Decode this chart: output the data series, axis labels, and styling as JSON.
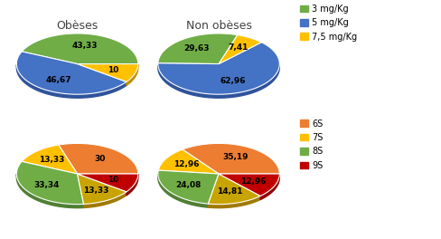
{
  "top_left": {
    "values": [
      43.33,
      46.67,
      10.0
    ],
    "labels": [
      "43,33",
      "46,67",
      "10"
    ],
    "colors": [
      "#70ad47",
      "#4472c4",
      "#ffc000"
    ],
    "dark_colors": [
      "#507f33",
      "#2f539b",
      "#bf9000"
    ],
    "startangle": 0,
    "title": "Obèses"
  },
  "top_right": {
    "values": [
      29.63,
      62.96,
      7.41
    ],
    "labels": [
      "29,63",
      "62,96",
      "7,41"
    ],
    "colors": [
      "#70ad47",
      "#4472c4",
      "#ffc000"
    ],
    "dark_colors": [
      "#507f33",
      "#2f539b",
      "#bf9000"
    ],
    "startangle": 72,
    "title": "Non obèses"
  },
  "bottom_left": {
    "values": [
      30.0,
      13.33,
      33.34,
      13.33,
      10.0
    ],
    "labels": [
      "30",
      "13,33",
      "33,34",
      "13,33",
      "10"
    ],
    "colors": [
      "#ed7d31",
      "#ffc000",
      "#70ad47",
      "#c8a400",
      "#c00000"
    ],
    "dark_colors": [
      "#b05a1e",
      "#bf9000",
      "#507f33",
      "#a07a00",
      "#900000"
    ],
    "startangle": 0,
    "title": ""
  },
  "bottom_right": {
    "values": [
      35.19,
      12.96,
      24.08,
      14.81,
      12.96
    ],
    "labels": [
      "35,19",
      "12,96",
      "24,08",
      "14,81",
      "12,96"
    ],
    "colors": [
      "#ed7d31",
      "#ffc000",
      "#70ad47",
      "#c8a400",
      "#c00000"
    ],
    "dark_colors": [
      "#b05a1e",
      "#bf9000",
      "#507f33",
      "#a07a00",
      "#900000"
    ],
    "startangle": 0,
    "title": ""
  },
  "legend_top": {
    "labels": [
      "3 mg/Kg",
      "5 mg/Kg",
      "7,5 mg/Kg"
    ],
    "colors": [
      "#70ad47",
      "#4472c4",
      "#ffc000"
    ]
  },
  "legend_bottom": {
    "labels": [
      "6S",
      "7S",
      "8S",
      "9S"
    ],
    "colors": [
      "#ed7d31",
      "#ffc000",
      "#70ad47",
      "#c00000"
    ]
  },
  "fig_width": 4.89,
  "fig_height": 2.64,
  "dpi": 100,
  "background_color": "#ffffff",
  "label_fontsize": 6.5,
  "title_fontsize": 9,
  "legend_fontsize": 7,
  "pie_depth": 0.06,
  "pie_aspect": 0.5
}
